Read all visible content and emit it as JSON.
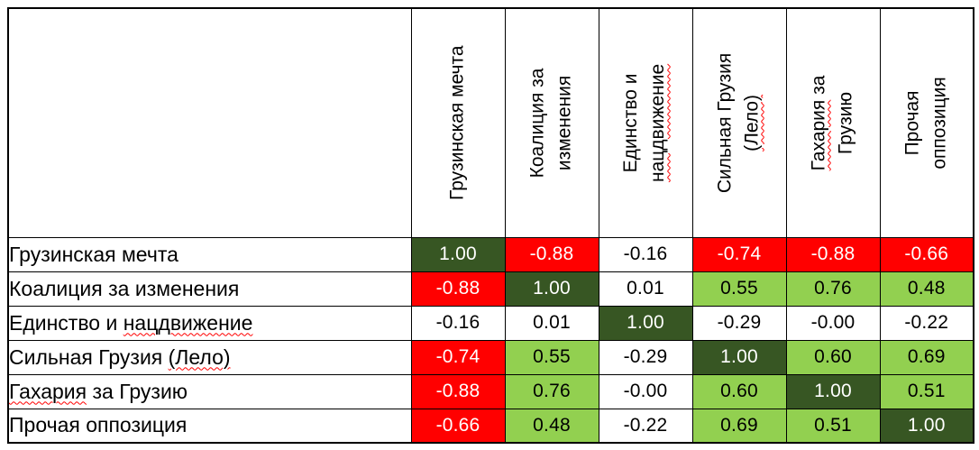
{
  "chart_data": {
    "type": "heatmap",
    "categories": [
      "Грузинская мечта",
      "Коалиция за изменения",
      "Единство и нацдвижение",
      "Сильная Грузия (Лело)",
      "Гахария за Грузию",
      "Прочая оппозиция"
    ],
    "matrix": [
      [
        "1.00",
        "-0.88",
        "-0.16",
        "-0.74",
        "-0.88",
        "-0.66"
      ],
      [
        "-0.88",
        "1.00",
        "0.01",
        "0.55",
        "0.76",
        "0.48"
      ],
      [
        "-0.16",
        "0.01",
        "1.00",
        "-0.29",
        "-0.00",
        "-0.22"
      ],
      [
        "-0.74",
        "0.55",
        "-0.29",
        "1.00",
        "0.60",
        "0.69"
      ],
      [
        "-0.88",
        "0.76",
        "-0.00",
        "0.60",
        "1.00",
        "0.51"
      ],
      [
        "-0.66",
        "0.48",
        "-0.22",
        "0.69",
        "0.51",
        "1.00"
      ]
    ],
    "legend_position": "none",
    "grid": true
  },
  "table": {
    "column_headers": [
      {
        "lines": [
          "Грузинская мечта"
        ],
        "misspelled": []
      },
      {
        "lines": [
          "Коалиция за",
          "изменения"
        ],
        "misspelled": []
      },
      {
        "lines": [
          "Единство и",
          "нацдвижение"
        ],
        "misspelled": [
          "нацдвижение"
        ]
      },
      {
        "lines": [
          "Сильная Грузия",
          "(Лело)"
        ],
        "misspelled": [
          "(Лело)"
        ]
      },
      {
        "lines": [
          "Гахария за",
          "Грузию"
        ],
        "misspelled": [
          "Гахария"
        ]
      },
      {
        "lines": [
          "Прочая",
          "оппозиция"
        ],
        "misspelled": []
      }
    ],
    "row_headers": [
      {
        "text": "Грузинская мечта",
        "misspelled": []
      },
      {
        "text": "Коалиция за изменения",
        "misspelled": []
      },
      {
        "text": "Единство и нацдвижение",
        "misspelled": [
          "нацдвижение"
        ]
      },
      {
        "text": "Сильная Грузия (Лело)",
        "misspelled": [
          "(Лело)"
        ]
      },
      {
        "text": "Гахария за Грузию",
        "misspelled": [
          "Гахария"
        ]
      },
      {
        "text": "Прочая оппозиция",
        "misspelled": []
      }
    ]
  },
  "colors": {
    "diagonal_bg": "#375623",
    "positive_bg": "#92D050",
    "negative_bg": "#FF0000",
    "neutral_bg": "#FFFFFF",
    "light_text": "#FFFFFF",
    "dark_text": "#000000",
    "border": "#000000",
    "spellcheck_underline": "#FF0000"
  },
  "color_rules": {
    "diagonal_min": 0.995,
    "negative_max": -0.5,
    "positive_min": 0.4
  }
}
